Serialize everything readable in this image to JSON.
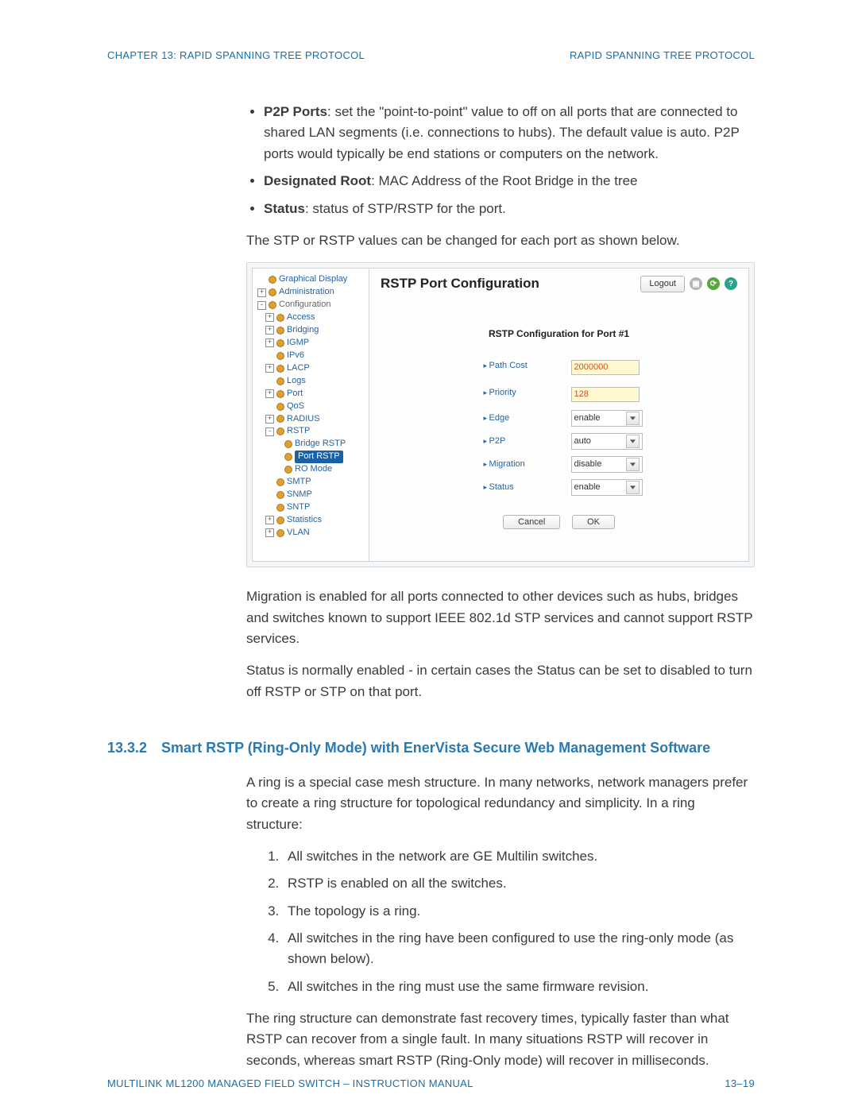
{
  "header": {
    "left": "CHAPTER 13: RAPID SPANNING TREE PROTOCOL",
    "right": "RAPID SPANNING TREE PROTOCOL"
  },
  "bullets_top": {
    "p2p_label": "P2P Ports",
    "p2p_text": ": set the \"point-to-point\" value to off on all ports that are connected to shared LAN segments (i.e. connections to hubs). The default value is auto. P2P ports would typically be end stations or computers on the network.",
    "root_label": "Designated Root",
    "root_text": ": MAC Address of the Root Bridge in the tree",
    "status_label": "Status",
    "status_text": ": status of STP/RSTP for the port."
  },
  "para_before_shot": "The STP or RSTP values can be changed for each port as shown below.",
  "screenshot": {
    "title": "RSTP Port Configuration",
    "logout": "Logout",
    "form_title": "RSTP Configuration for Port #1",
    "rows": {
      "path_cost": {
        "label": "Path Cost",
        "value": "2000000"
      },
      "priority": {
        "label": "Priority",
        "value": "128"
      },
      "edge": {
        "label": "Edge",
        "value": "enable"
      },
      "p2p": {
        "label": "P2P",
        "value": "auto"
      },
      "migration": {
        "label": "Migration",
        "value": "disable"
      },
      "status": {
        "label": "Status",
        "value": "enable"
      }
    },
    "cancel": "Cancel",
    "ok": "OK",
    "tree": [
      {
        "lvl": 1,
        "exp": "",
        "dot": true,
        "label": "Graphical Display"
      },
      {
        "lvl": 1,
        "exp": "plus",
        "dot": true,
        "label": "Administration"
      },
      {
        "lvl": 1,
        "exp": "minus",
        "dot": true,
        "label": "Configuration",
        "grey": true
      },
      {
        "lvl": 2,
        "exp": "plus",
        "dot": true,
        "label": "Access"
      },
      {
        "lvl": 2,
        "exp": "plus",
        "dot": true,
        "label": "Bridging"
      },
      {
        "lvl": 2,
        "exp": "plus",
        "dot": true,
        "label": "IGMP"
      },
      {
        "lvl": 2,
        "exp": "",
        "dot": true,
        "label": "IPv6"
      },
      {
        "lvl": 2,
        "exp": "plus",
        "dot": true,
        "label": "LACP"
      },
      {
        "lvl": 2,
        "exp": "",
        "dot": true,
        "label": "Logs"
      },
      {
        "lvl": 2,
        "exp": "plus",
        "dot": true,
        "label": "Port"
      },
      {
        "lvl": 2,
        "exp": "",
        "dot": true,
        "label": "QoS"
      },
      {
        "lvl": 2,
        "exp": "plus",
        "dot": true,
        "label": "RADIUS"
      },
      {
        "lvl": 2,
        "exp": "minus",
        "dot": true,
        "label": "RSTP"
      },
      {
        "lvl": 3,
        "exp": "",
        "dot": true,
        "label": "Bridge RSTP"
      },
      {
        "lvl": 3,
        "exp": "",
        "dot": true,
        "label": "Port RSTP",
        "selected": true
      },
      {
        "lvl": 3,
        "exp": "",
        "dot": true,
        "label": "RO Mode"
      },
      {
        "lvl": 2,
        "exp": "",
        "dot": true,
        "label": "SMTP"
      },
      {
        "lvl": 2,
        "exp": "",
        "dot": true,
        "label": "SNMP"
      },
      {
        "lvl": 2,
        "exp": "",
        "dot": true,
        "label": "SNTP"
      },
      {
        "lvl": 2,
        "exp": "plus",
        "dot": true,
        "label": "Statistics"
      },
      {
        "lvl": 2,
        "exp": "plus",
        "dot": true,
        "label": "VLAN"
      }
    ]
  },
  "para_after_shot_1": "Migration is enabled for all ports connected to other devices such as hubs, bridges and switches known to support IEEE 802.1d STP services and cannot support RSTP services.",
  "para_after_shot_2": "Status is normally enabled - in certain cases the Status can be set to disabled to turn off RSTP or STP on that port.",
  "section": {
    "num": "13.3.2",
    "title": "Smart RSTP (Ring-Only Mode) with EnerVista Secure Web Management Software"
  },
  "para_ring": "A ring is a special case mesh structure. In many networks, network managers prefer to create a ring structure for topological redundancy and simplicity. In a ring structure:",
  "ol": [
    "All switches in the network are GE Multilin switches.",
    "RSTP is enabled on all the switches.",
    "The topology is a ring.",
    "All switches in the ring have been configured to use the ring-only mode (as shown below).",
    "All switches in the ring must use the same firmware revision."
  ],
  "para_ring_after": "The ring structure can demonstrate fast recovery times, typically faster than what RSTP can recover from a single fault. In many situations RSTP will recover in seconds, whereas smart RSTP (Ring-Only mode) will recover in milliseconds.",
  "footer": {
    "left": "MULTILINK ML1200 MANAGED FIELD SWITCH – INSTRUCTION MANUAL",
    "right": "13–19"
  }
}
